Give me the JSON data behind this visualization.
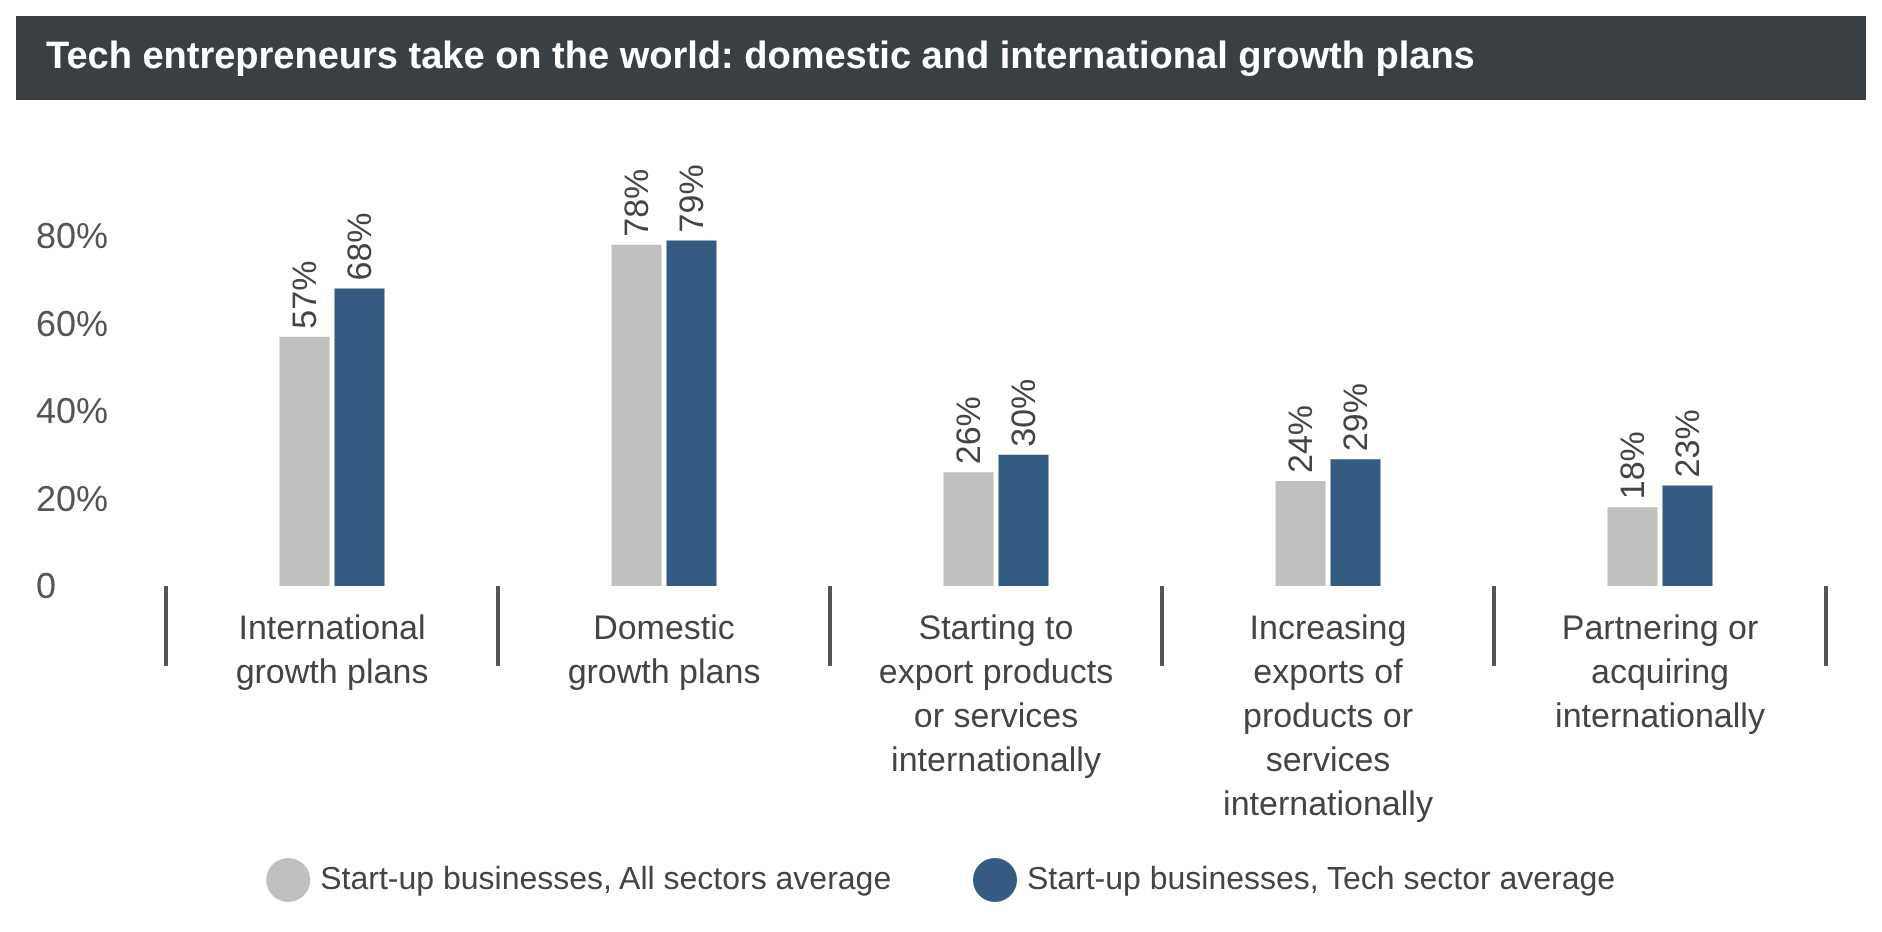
{
  "chart_data": {
    "type": "bar",
    "title": "Tech entrepreneurs take on the world: domestic and international growth plans",
    "categories": [
      "International\ngrowth plans",
      "Domestic\ngrowth plans",
      "Starting to\nexport products\nor services\ninternationally",
      "Increasing\nexports of\nproducts or\nservices\ninternationally",
      "Partnering or\nacquiring\ninternationally"
    ],
    "series": [
      {
        "name": "Start-up businesses, All sectors average",
        "color": "#bfbfbf",
        "values": [
          57,
          78,
          26,
          24,
          18
        ],
        "value_labels": [
          "57%",
          "78%",
          "26%",
          "24%",
          "18%"
        ]
      },
      {
        "name": "Start-up businesses, Tech sector average",
        "color": "#345b82",
        "values": [
          68,
          79,
          30,
          29,
          23
        ],
        "value_labels": [
          "68%",
          "79%",
          "30%",
          "29%",
          "23%"
        ]
      }
    ],
    "ylim": [
      0,
      80
    ],
    "yticks": [
      0,
      {
        "value": 20,
        "label": "20%"
      },
      {
        "value": 40,
        "label": "40%"
      },
      {
        "value": 60,
        "label": "60%"
      },
      {
        "value": 80,
        "label": "80%"
      }
    ],
    "grid": false,
    "legend": "bottom"
  }
}
